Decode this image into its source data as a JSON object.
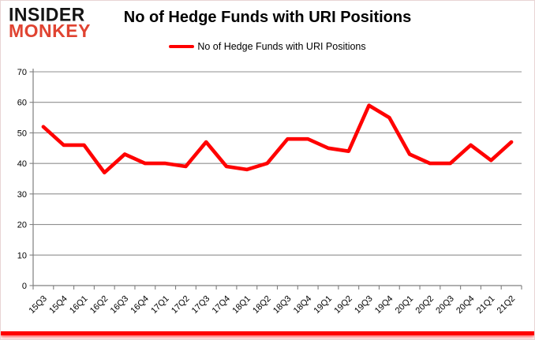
{
  "logo": {
    "line1": "INSIDER",
    "line2": "MONKEY"
  },
  "header": {
    "title": "No of Hedge Funds with URI Positions"
  },
  "legend": {
    "label": "No of Hedge Funds with URI Positions"
  },
  "colors": {
    "line": "#ff0000",
    "grid": "#8f8f8f",
    "axis": "#7f7f7f",
    "logo_accent": "#e04331",
    "logo_dark": "#141414",
    "bottom_bar": "#ff0000"
  },
  "chart_data": {
    "type": "line",
    "title": "No of Hedge Funds with URI Positions",
    "categories": [
      "15Q3",
      "15Q4",
      "16Q1",
      "16Q2",
      "16Q3",
      "16Q4",
      "17Q1",
      "17Q2",
      "17Q3",
      "17Q4",
      "18Q1",
      "18Q2",
      "18Q3",
      "18Q4",
      "19Q1",
      "19Q2",
      "19Q3",
      "19Q4",
      "20Q1",
      "20Q2",
      "20Q3",
      "20Q4",
      "21Q1",
      "21Q2"
    ],
    "series": [
      {
        "name": "No of Hedge Funds with URI Positions",
        "color": "#ff0000",
        "values": [
          52,
          46,
          46,
          37,
          43,
          40,
          40,
          39,
          47,
          39,
          38,
          40,
          48,
          48,
          45,
          44,
          59,
          55,
          43,
          40,
          40,
          46,
          41,
          47
        ]
      }
    ],
    "ylim": [
      0,
      70
    ],
    "ytick_interval": 10,
    "grid": true,
    "legend_position": "top",
    "xlabel": "",
    "ylabel": ""
  }
}
